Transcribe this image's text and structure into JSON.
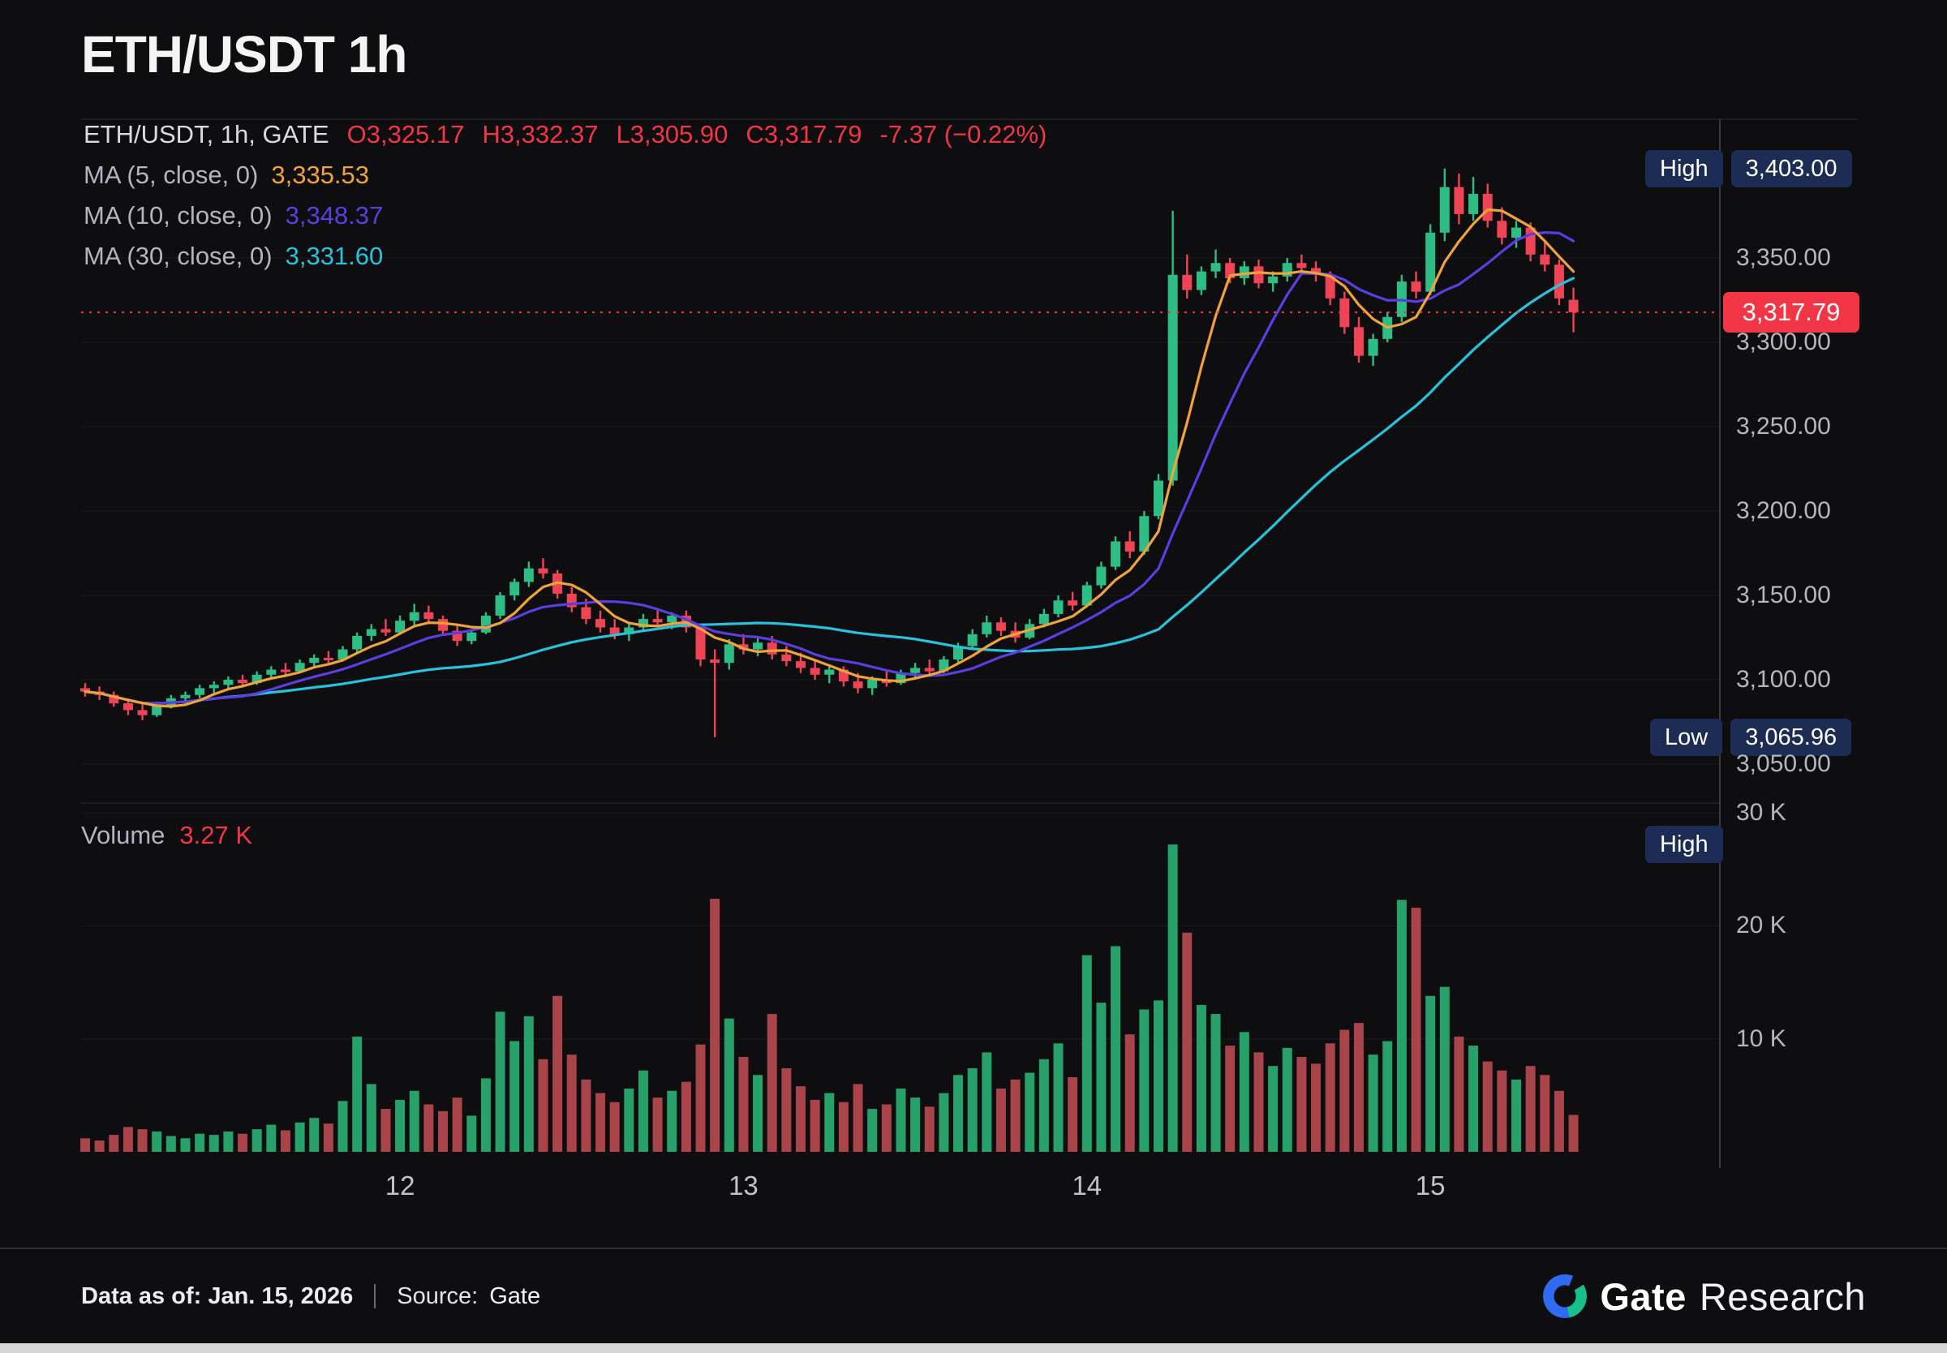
{
  "header": {
    "title": "ETH/USDT 1h",
    "symbol_info": "ETH/USDT, 1h, GATE",
    "ohlc": {
      "open": "O3,325.17",
      "high": "H3,332.37",
      "low": "L3,305.90",
      "close": "C3,317.79",
      "change": "-7.37 (−0.22%)"
    },
    "ma_lines": [
      {
        "label": "MA (5, close, 0)",
        "value": "3,335.53",
        "color": "#f0a33a"
      },
      {
        "label": "MA (10, close, 0)",
        "value": "3,348.37",
        "color": "#5b3de0"
      },
      {
        "label": "MA (30, close, 0)",
        "value": "3,331.60",
        "color": "#27c3dd"
      }
    ]
  },
  "overlays": {
    "high_badge": {
      "label": "High",
      "value": "3,403.00"
    },
    "low_badge": {
      "label": "Low",
      "value": "3,065.96"
    },
    "last_price_badge": "3,317.79",
    "volume_high_badge": "High",
    "volume_label": "Volume",
    "volume_value": "3.27 K"
  },
  "footer": {
    "data_as_of": "Data as of: Jan. 15, 2026",
    "source_label": "Source:",
    "source_value": "Gate",
    "brand_name": "Gate",
    "brand_suffix": "Research"
  },
  "colors": {
    "background": "#0e0e10",
    "up": "#2ebd85",
    "down": "#ef4456",
    "vol_up": "#27a06a",
    "vol_down": "#a8444a",
    "ma5": "#f0a33a",
    "ma10": "#5b3de0",
    "ma30": "#27c3dd",
    "accent_red": "#f23645",
    "badge_navy": "#1d2c55",
    "grid": "#1a1a1e",
    "pane_border": "#232327",
    "axis_line": "#3b3b41",
    "axis_text": "#b3b6bd"
  },
  "chart_data": {
    "type": "candlestick+volume",
    "title": "ETH/USDT 1h",
    "exchange": "GATE",
    "interval": "1h",
    "last": {
      "open": 3325.17,
      "high": 3332.37,
      "low": 3305.9,
      "close": 3317.79,
      "change": -7.37,
      "change_pct": -0.22
    },
    "session_high": 3403.0,
    "session_low": 3065.96,
    "current_volume_k": 3.27,
    "ma_periods": [
      5,
      10,
      30
    ],
    "price_axis": {
      "line_price": 3317.79,
      "ticks": [
        {
          "price": 3350,
          "label": "3,350.00"
        },
        {
          "price": 3300,
          "label": "3,300.00"
        },
        {
          "price": 3250,
          "label": "3,250.00"
        },
        {
          "price": 3200,
          "label": "3,200.00"
        },
        {
          "price": 3150,
          "label": "3,150.00"
        },
        {
          "price": 3100,
          "label": "3,100.00"
        },
        {
          "price": 3050,
          "label": "3,050.00"
        }
      ]
    },
    "volume_axis": {
      "ticks": [
        {
          "value": 30,
          "label": "30 K"
        },
        {
          "value": 20,
          "label": "20 K"
        },
        {
          "value": 10,
          "label": "10 K"
        }
      ]
    },
    "x_ticks": [
      {
        "index": 22,
        "label": "12"
      },
      {
        "index": 46,
        "label": "13"
      },
      {
        "index": 70,
        "label": "14"
      },
      {
        "index": 94,
        "label": "15"
      }
    ],
    "candles": [
      [
        3095,
        3098,
        3090,
        3093,
        1.2
      ],
      [
        3093,
        3096,
        3088,
        3091,
        1.0
      ],
      [
        3091,
        3093,
        3084,
        3086,
        1.5
      ],
      [
        3086,
        3089,
        3079,
        3082,
        2.2
      ],
      [
        3082,
        3086,
        3076,
        3079,
        2.0
      ],
      [
        3079,
        3087,
        3078,
        3085,
        1.8
      ],
      [
        3085,
        3091,
        3083,
        3089,
        1.4
      ],
      [
        3089,
        3093,
        3086,
        3091,
        1.2
      ],
      [
        3091,
        3097,
        3089,
        3095,
        1.6
      ],
      [
        3095,
        3099,
        3092,
        3097,
        1.5
      ],
      [
        3097,
        3102,
        3094,
        3100,
        1.8
      ],
      [
        3100,
        3103,
        3096,
        3098,
        1.6
      ],
      [
        3098,
        3105,
        3097,
        3103,
        2.0
      ],
      [
        3103,
        3108,
        3101,
        3106,
        2.4
      ],
      [
        3106,
        3110,
        3103,
        3105,
        1.9
      ],
      [
        3105,
        3112,
        3104,
        3110,
        2.6
      ],
      [
        3110,
        3115,
        3107,
        3113,
        3.0
      ],
      [
        3113,
        3117,
        3110,
        3112,
        2.5
      ],
      [
        3112,
        3120,
        3111,
        3118,
        4.5
      ],
      [
        3118,
        3128,
        3116,
        3126,
        10.2
      ],
      [
        3126,
        3133,
        3123,
        3130,
        6.0
      ],
      [
        3130,
        3136,
        3126,
        3128,
        3.8
      ],
      [
        3128,
        3138,
        3127,
        3135,
        4.6
      ],
      [
        3135,
        3145,
        3132,
        3140,
        5.4
      ],
      [
        3140,
        3144,
        3133,
        3136,
        4.2
      ],
      [
        3136,
        3138,
        3126,
        3129,
        3.6
      ],
      [
        3129,
        3132,
        3120,
        3123,
        4.8
      ],
      [
        3123,
        3130,
        3121,
        3128,
        3.2
      ],
      [
        3128,
        3140,
        3127,
        3138,
        6.5
      ],
      [
        3138,
        3152,
        3136,
        3150,
        12.4
      ],
      [
        3150,
        3160,
        3147,
        3158,
        9.8
      ],
      [
        3158,
        3170,
        3155,
        3166,
        12.0
      ],
      [
        3166,
        3172,
        3160,
        3163,
        8.2
      ],
      [
        3163,
        3165,
        3148,
        3151,
        13.8
      ],
      [
        3151,
        3155,
        3140,
        3143,
        8.6
      ],
      [
        3143,
        3148,
        3133,
        3136,
        6.4
      ],
      [
        3136,
        3141,
        3128,
        3131,
        5.2
      ],
      [
        3131,
        3136,
        3124,
        3127,
        4.4
      ],
      [
        3127,
        3134,
        3123,
        3131,
        5.6
      ],
      [
        3131,
        3139,
        3129,
        3136,
        7.2
      ],
      [
        3136,
        3142,
        3132,
        3134,
        4.8
      ],
      [
        3134,
        3140,
        3130,
        3138,
        5.4
      ],
      [
        3138,
        3141,
        3128,
        3131,
        6.2
      ],
      [
        3131,
        3133,
        3108,
        3112,
        9.5
      ],
      [
        3112,
        3118,
        3065.96,
        3110,
        22.4
      ],
      [
        3110,
        3124,
        3106,
        3121,
        11.8
      ],
      [
        3121,
        3127,
        3115,
        3118,
        8.4
      ],
      [
        3118,
        3125,
        3114,
        3122,
        6.8
      ],
      [
        3122,
        3126,
        3112,
        3115,
        12.2
      ],
      [
        3115,
        3120,
        3108,
        3111,
        7.4
      ],
      [
        3111,
        3116,
        3104,
        3107,
        5.8
      ],
      [
        3107,
        3112,
        3100,
        3103,
        4.6
      ],
      [
        3103,
        3109,
        3098,
        3106,
        5.2
      ],
      [
        3106,
        3108,
        3096,
        3099,
        4.4
      ],
      [
        3099,
        3104,
        3092,
        3095,
        6.0
      ],
      [
        3095,
        3102,
        3091,
        3100,
        3.8
      ],
      [
        3100,
        3105,
        3096,
        3098,
        4.2
      ],
      [
        3098,
        3106,
        3097,
        3104,
        5.6
      ],
      [
        3104,
        3110,
        3101,
        3107,
        4.8
      ],
      [
        3107,
        3112,
        3103,
        3105,
        4.0
      ],
      [
        3105,
        3114,
        3104,
        3112,
        5.2
      ],
      [
        3112,
        3122,
        3110,
        3120,
        6.8
      ],
      [
        3120,
        3130,
        3118,
        3127,
        7.4
      ],
      [
        3127,
        3138,
        3125,
        3134,
        8.8
      ],
      [
        3134,
        3137,
        3126,
        3129,
        5.6
      ],
      [
        3129,
        3134,
        3122,
        3125,
        6.4
      ],
      [
        3125,
        3136,
        3124,
        3133,
        7.0
      ],
      [
        3133,
        3142,
        3131,
        3139,
        8.2
      ],
      [
        3139,
        3150,
        3137,
        3147,
        9.6
      ],
      [
        3147,
        3152,
        3141,
        3144,
        6.6
      ],
      [
        3144,
        3158,
        3143,
        3156,
        17.4
      ],
      [
        3156,
        3170,
        3154,
        3167,
        13.2
      ],
      [
        3167,
        3185,
        3165,
        3182,
        18.2
      ],
      [
        3182,
        3188,
        3172,
        3176,
        10.4
      ],
      [
        3176,
        3200,
        3174,
        3197,
        12.6
      ],
      [
        3197,
        3222,
        3195,
        3218,
        13.4
      ],
      [
        3218,
        3378,
        3215,
        3340,
        27.2
      ],
      [
        3340,
        3352,
        3326,
        3331,
        19.4
      ],
      [
        3331,
        3345,
        3328,
        3342,
        13.0
      ],
      [
        3342,
        3355,
        3338,
        3347,
        12.2
      ],
      [
        3347,
        3350,
        3335,
        3338,
        9.4
      ],
      [
        3338,
        3348,
        3334,
        3345,
        10.6
      ],
      [
        3345,
        3349,
        3332,
        3335,
        8.8
      ],
      [
        3335,
        3342,
        3330,
        3339,
        7.6
      ],
      [
        3339,
        3350,
        3336,
        3347,
        9.2
      ],
      [
        3347,
        3352,
        3342,
        3344,
        8.4
      ],
      [
        3344,
        3348,
        3336,
        3340,
        7.8
      ],
      [
        3340,
        3342,
        3322,
        3326,
        9.6
      ],
      [
        3326,
        3330,
        3305,
        3309,
        10.8
      ],
      [
        3309,
        3315,
        3288,
        3292,
        11.4
      ],
      [
        3292,
        3305,
        3286,
        3302,
        8.6
      ],
      [
        3302,
        3318,
        3300,
        3315,
        9.8
      ],
      [
        3315,
        3340,
        3312,
        3336,
        22.3
      ],
      [
        3336,
        3342,
        3326,
        3330,
        21.6
      ],
      [
        3330,
        3370,
        3328,
        3365,
        13.8
      ],
      [
        3365,
        3403,
        3360,
        3392,
        14.6
      ],
      [
        3392,
        3400,
        3370,
        3376,
        10.2
      ],
      [
        3376,
        3398,
        3372,
        3388,
        9.4
      ],
      [
        3388,
        3394,
        3368,
        3372,
        8.0
      ],
      [
        3372,
        3380,
        3358,
        3362,
        7.2
      ],
      [
        3362,
        3372,
        3356,
        3368,
        6.4
      ],
      [
        3368,
        3371,
        3348,
        3352,
        7.6
      ],
      [
        3352,
        3360,
        3342,
        3346,
        6.8
      ],
      [
        3346,
        3349,
        3322,
        3326,
        5.4
      ],
      [
        3325.17,
        3332.37,
        3305.9,
        3317.79,
        3.27
      ]
    ]
  }
}
